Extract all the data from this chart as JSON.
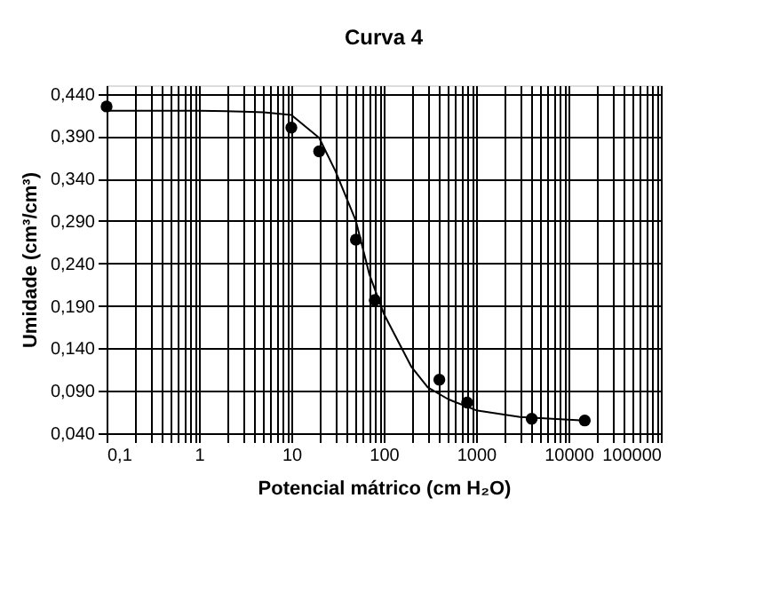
{
  "chart_data": {
    "type": "scatter",
    "title": "Curva 4",
    "xlabel": "Potencial mátrico  (cm H₂O)",
    "ylabel": "Umidade (cm³/cm³)",
    "log": "x",
    "grid": true,
    "marker": "circle",
    "xlim": [
      0.1,
      100000
    ],
    "ylim": [
      0.04,
      0.45
    ],
    "xticks": [
      {
        "value": 0.1,
        "label": "0,1"
      },
      {
        "value": 0.2,
        "label": null
      },
      {
        "value": 0.3,
        "label": null
      },
      {
        "value": 0.4,
        "label": null
      },
      {
        "value": 0.5,
        "label": null
      },
      {
        "value": 0.6,
        "label": null
      },
      {
        "value": 0.7,
        "label": null
      },
      {
        "value": 0.8,
        "label": null
      },
      {
        "value": 0.9,
        "label": null
      },
      {
        "value": 1,
        "label": "1"
      },
      {
        "value": 2,
        "label": null
      },
      {
        "value": 3,
        "label": null
      },
      {
        "value": 4,
        "label": null
      },
      {
        "value": 5,
        "label": null
      },
      {
        "value": 6,
        "label": null
      },
      {
        "value": 7,
        "label": null
      },
      {
        "value": 8,
        "label": null
      },
      {
        "value": 9,
        "label": null
      },
      {
        "value": 10,
        "label": "10"
      },
      {
        "value": 20,
        "label": null
      },
      {
        "value": 30,
        "label": null
      },
      {
        "value": 40,
        "label": null
      },
      {
        "value": 50,
        "label": null
      },
      {
        "value": 60,
        "label": null
      },
      {
        "value": 70,
        "label": null
      },
      {
        "value": 80,
        "label": null
      },
      {
        "value": 90,
        "label": null
      },
      {
        "value": 100,
        "label": "100"
      },
      {
        "value": 200,
        "label": null
      },
      {
        "value": 300,
        "label": null
      },
      {
        "value": 400,
        "label": null
      },
      {
        "value": 500,
        "label": null
      },
      {
        "value": 600,
        "label": null
      },
      {
        "value": 700,
        "label": null
      },
      {
        "value": 800,
        "label": null
      },
      {
        "value": 900,
        "label": null
      },
      {
        "value": 1000,
        "label": "1000"
      },
      {
        "value": 2000,
        "label": null
      },
      {
        "value": 3000,
        "label": null
      },
      {
        "value": 4000,
        "label": null
      },
      {
        "value": 5000,
        "label": null
      },
      {
        "value": 6000,
        "label": null
      },
      {
        "value": 7000,
        "label": null
      },
      {
        "value": 8000,
        "label": null
      },
      {
        "value": 9000,
        "label": null
      },
      {
        "value": 10000,
        "label": "10000"
      },
      {
        "value": 20000,
        "label": null
      },
      {
        "value": 30000,
        "label": null
      },
      {
        "value": 40000,
        "label": null
      },
      {
        "value": 50000,
        "label": null
      },
      {
        "value": 60000,
        "label": null
      },
      {
        "value": 70000,
        "label": null
      },
      {
        "value": 80000,
        "label": null
      },
      {
        "value": 90000,
        "label": null
      },
      {
        "value": 100000,
        "label": "100000"
      }
    ],
    "yticks": [
      {
        "value": 0.04,
        "label": "0,040"
      },
      {
        "value": 0.09,
        "label": "0,090"
      },
      {
        "value": 0.14,
        "label": "0,140"
      },
      {
        "value": 0.19,
        "label": "0,190"
      },
      {
        "value": 0.24,
        "label": "0,240"
      },
      {
        "value": 0.29,
        "label": "0,290"
      },
      {
        "value": 0.34,
        "label": "0,340"
      },
      {
        "value": 0.39,
        "label": "0,390"
      },
      {
        "value": 0.44,
        "label": "0,440"
      }
    ],
    "series": [
      {
        "type": "line",
        "color": "#000000",
        "marker": "none",
        "line_style": "solid",
        "x": [
          0.1,
          1,
          3,
          5,
          10,
          20,
          30,
          50,
          70,
          100,
          200,
          300,
          500,
          1000,
          3000,
          10000,
          15000
        ],
        "values": [
          0.42,
          0.42,
          0.419,
          0.418,
          0.415,
          0.388,
          0.349,
          0.29,
          0.227,
          0.181,
          0.118,
          0.094,
          0.08,
          0.067,
          0.059,
          0.056,
          0.055
        ]
      },
      {
        "type": "scatter",
        "color": "#000000",
        "x": [
          0.1,
          10,
          20,
          50,
          80,
          400,
          800,
          4000,
          15000
        ],
        "values": [
          0.425,
          0.4,
          0.372,
          0.268,
          0.197,
          0.103,
          0.076,
          0.057,
          0.055
        ]
      }
    ]
  }
}
